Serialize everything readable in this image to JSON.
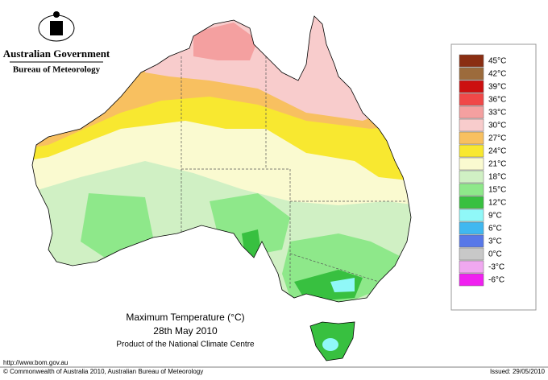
{
  "header": {
    "title": "Australian Government",
    "subtitle": "Bureau of Meteorology"
  },
  "caption": {
    "title": "Maximum Temperature (°C)",
    "date": "28th May 2010",
    "product": "Product of the National Climate Centre"
  },
  "legend": [
    {
      "label": "45°C",
      "color": "#8a2e12"
    },
    {
      "label": "42°C",
      "color": "#9c6b3c"
    },
    {
      "label": "39°C",
      "color": "#cc1010"
    },
    {
      "label": "36°C",
      "color": "#f04848"
    },
    {
      "label": "33°C",
      "color": "#f4a0a0"
    },
    {
      "label": "30°C",
      "color": "#f8cccc"
    },
    {
      "label": "27°C",
      "color": "#f8c060"
    },
    {
      "label": "24°C",
      "color": "#f8e830"
    },
    {
      "label": "21°C",
      "color": "#fafad0"
    },
    {
      "label": "18°C",
      "color": "#d0f0c4"
    },
    {
      "label": "15°C",
      "color": "#8ee88a"
    },
    {
      "label": "12°C",
      "color": "#38c040"
    },
    {
      "label": "9°C",
      "color": "#90f8f8"
    },
    {
      "label": "6°C",
      "color": "#40b8f0"
    },
    {
      "label": "3°C",
      "color": "#5878e8"
    },
    {
      "label": "0°C",
      "color": "#c8c8c8"
    },
    {
      "label": "-3°C",
      "color": "#f0a8f0"
    },
    {
      "label": "-6°C",
      "color": "#f020f0"
    }
  ],
  "footer": {
    "url": "http://www.bom.gov.au",
    "copyright": "© Commonwealth of Australia 2010, Australian Bureau of Meteorology",
    "issued": "Issued: 29/05/2010"
  }
}
